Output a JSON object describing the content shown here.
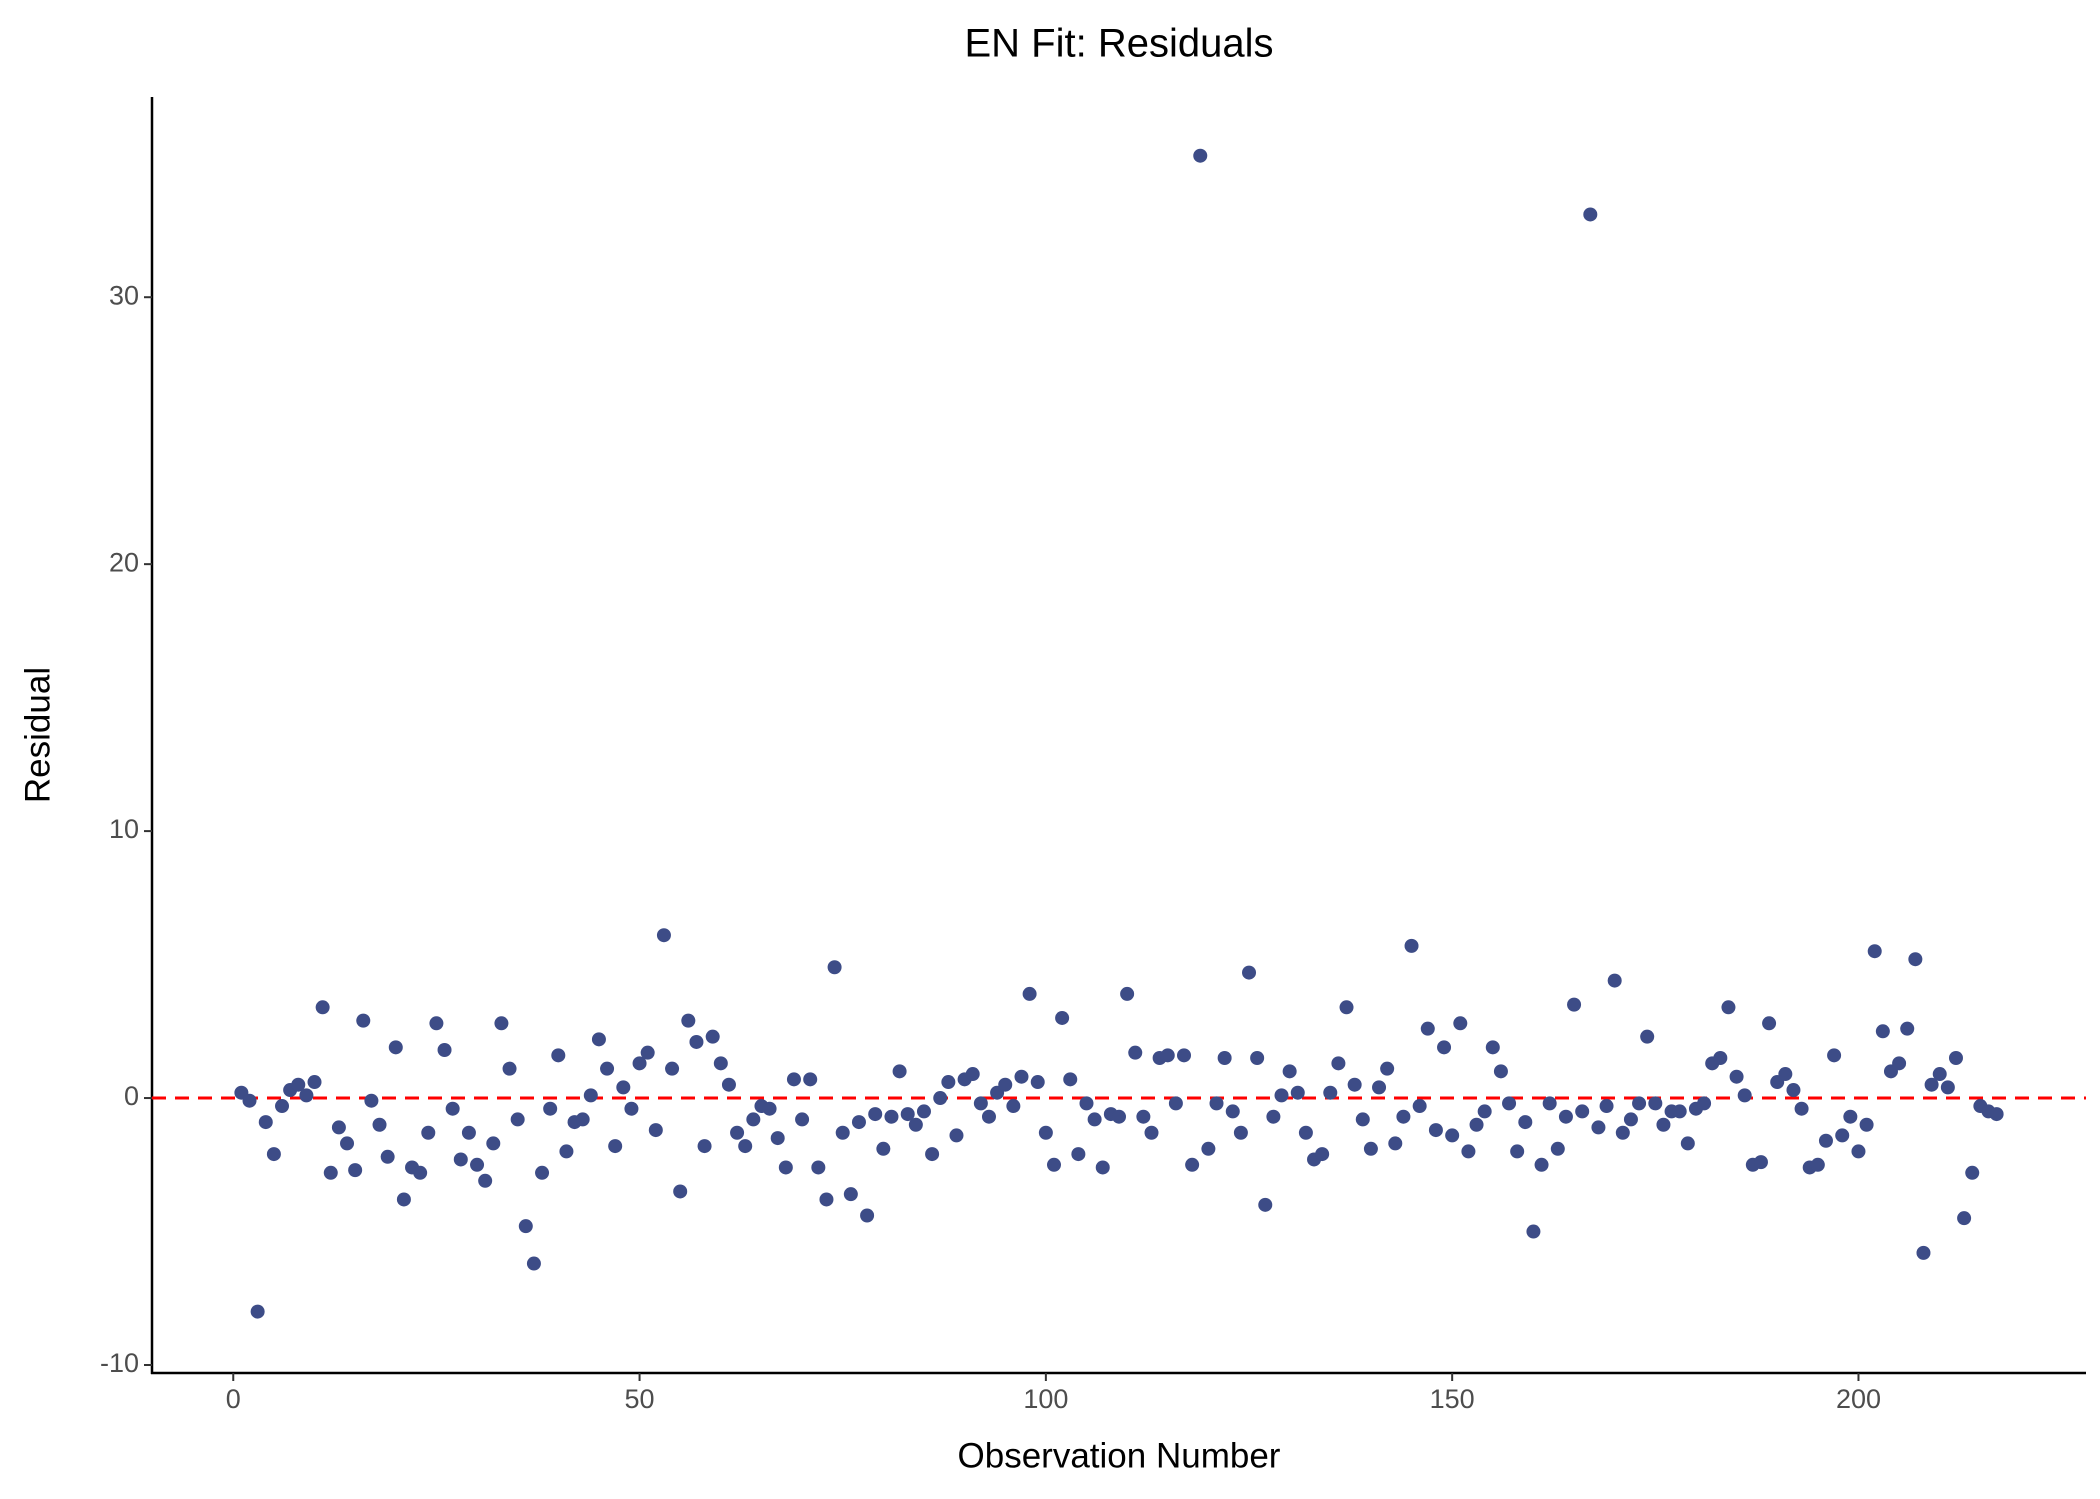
{
  "chart_data": {
    "type": "scatter",
    "title": "EN Fit: Residuals",
    "x_label": "Observation Number",
    "y_label": "Residual",
    "x": [
      1,
      2,
      3,
      4,
      5,
      6,
      7,
      8,
      9,
      10,
      11,
      12,
      13,
      14,
      15,
      16,
      17,
      18,
      19,
      20,
      21,
      22,
      23,
      24,
      25,
      26,
      27,
      28,
      29,
      30,
      31,
      32,
      33,
      34,
      35,
      36,
      37,
      38,
      39,
      40,
      41,
      42,
      43,
      44,
      45,
      46,
      47,
      48,
      49,
      50,
      51,
      52,
      53,
      54,
      55,
      56,
      57,
      58,
      59,
      60,
      61,
      62,
      63,
      64,
      65,
      66,
      67,
      68,
      69,
      70,
      71,
      72,
      73,
      74,
      75,
      76,
      77,
      78,
      79,
      80,
      81,
      82,
      83,
      84,
      85,
      86,
      87,
      88,
      89,
      90,
      91,
      92,
      93,
      94,
      95,
      96,
      97,
      98,
      99,
      100,
      101,
      102,
      103,
      104,
      105,
      106,
      107,
      108,
      109,
      110,
      111,
      112,
      113,
      114,
      115,
      116,
      117,
      118,
      119,
      120,
      121,
      122,
      123,
      124,
      125,
      126,
      127,
      128,
      129,
      130,
      131,
      132,
      133,
      134,
      135,
      136,
      137,
      138,
      139,
      140,
      141,
      142,
      143,
      144,
      145,
      146,
      147,
      148,
      149,
      150,
      151,
      152,
      153,
      154,
      155,
      156,
      157,
      158,
      159,
      160,
      161,
      162,
      163,
      164,
      165,
      166,
      167,
      168,
      169,
      170,
      171,
      172,
      173,
      174,
      175,
      176,
      177,
      178,
      179,
      180,
      181,
      182,
      183,
      184,
      185,
      186,
      187,
      188,
      189,
      190,
      191,
      192,
      193,
      194,
      195,
      196,
      197,
      198,
      199,
      200,
      201,
      202,
      203,
      204,
      205,
      206,
      207,
      208,
      209,
      210,
      211,
      212,
      213,
      214,
      215,
      216,
      217
    ],
    "values": [
      0.2,
      -0.1,
      -8.0,
      -0.9,
      -2.1,
      -0.3,
      0.3,
      0.5,
      0.1,
      0.6,
      3.4,
      -2.8,
      -1.1,
      -1.7,
      -2.7,
      2.9,
      -0.1,
      -1.0,
      -2.2,
      1.9,
      -3.8,
      -2.6,
      -2.8,
      -1.3,
      2.8,
      1.8,
      -0.4,
      -2.3,
      -1.3,
      -2.5,
      -3.1,
      -1.7,
      2.8,
      1.1,
      -0.8,
      -4.8,
      -6.2,
      -2.8,
      -0.4,
      1.6,
      -2.0,
      -0.9,
      -0.8,
      0.1,
      2.2,
      1.1,
      -1.8,
      0.4,
      -0.4,
      1.3,
      1.7,
      -1.2,
      6.1,
      1.1,
      -3.5,
      2.9,
      2.1,
      -1.8,
      2.3,
      1.3,
      0.5,
      -1.3,
      -1.8,
      -0.8,
      -0.3,
      -0.4,
      -1.5,
      -2.6,
      0.7,
      -0.8,
      0.7,
      -2.6,
      -3.8,
      4.9,
      -1.3,
      -3.6,
      -0.9,
      -4.4,
      -0.6,
      -1.9,
      -0.7,
      1.0,
      -0.6,
      -1.0,
      -0.5,
      -2.1,
      0.0,
      0.6,
      -1.4,
      0.7,
      0.9,
      -0.2,
      -0.7,
      0.2,
      0.5,
      -0.3,
      0.8,
      3.9,
      0.6,
      -1.3,
      -2.5,
      3.0,
      0.7,
      -2.1,
      -0.2,
      -0.8,
      -2.6,
      -0.6,
      -0.7,
      3.9,
      1.7,
      -0.7,
      -1.3,
      1.5,
      1.6,
      -0.2,
      1.6,
      -2.5,
      35.3,
      -1.9,
      -0.2,
      1.5,
      -0.5,
      -1.3,
      4.7,
      1.5,
      -4.0,
      -0.7,
      0.1,
      1.0,
      0.2,
      -1.3,
      -2.3,
      -2.1,
      0.2,
      1.3,
      3.4,
      0.5,
      -0.8,
      -1.9,
      0.4,
      1.1,
      -1.7,
      -0.7,
      5.7,
      -0.3,
      2.6,
      -1.2,
      1.9,
      -1.4,
      2.8,
      -2.0,
      -1.0,
      -0.5,
      1.9,
      1.0,
      -0.2,
      -2.0,
      -0.9,
      -5.0,
      -2.5,
      -0.2,
      -1.9,
      -0.7,
      3.5,
      -0.5,
      33.1,
      -1.1,
      -0.3,
      4.4,
      -1.3,
      -0.8,
      -0.2,
      2.3,
      -0.2,
      -1.0,
      -0.5,
      -0.5,
      -1.7,
      -0.4,
      -0.2,
      1.3,
      1.5,
      3.4,
      0.8,
      0.1,
      -2.5,
      -2.4,
      2.8,
      0.6,
      0.9,
      0.3,
      -0.4,
      -2.6,
      -2.5,
      -1.6,
      1.6,
      -1.4,
      -0.7,
      -2.0,
      -1.0,
      5.5,
      2.5,
      1.0,
      1.3,
      2.6,
      5.2,
      -5.8,
      0.5,
      0.9,
      0.4,
      1.5,
      -4.5,
      -2.8,
      -0.3,
      -0.5,
      -0.6
    ],
    "color": "#3d4c87",
    "reference_line": 0,
    "reference_color": "#ff0000",
    "xlim": [
      -10,
      228
    ],
    "ylim": [
      -10.3,
      37.5
    ],
    "xticks": [
      0,
      50,
      100,
      150,
      200
    ],
    "yticks": [
      -10,
      0,
      10,
      20,
      30
    ],
    "grid": false
  }
}
